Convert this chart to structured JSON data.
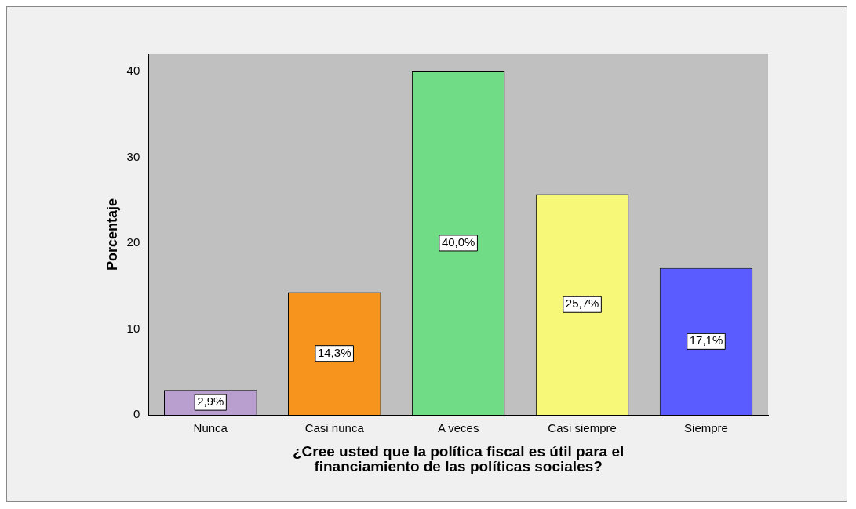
{
  "chart_data": {
    "type": "bar",
    "xlabel": "¿Cree usted que la política fiscal es útil para el\nfinanciamiento de las políticas sociales?",
    "ylabel": "Porcentaje",
    "categories": [
      "Nunca",
      "Casi nunca",
      "A veces",
      "Casi siempre",
      "Siempre"
    ],
    "values": [
      2.9,
      14.3,
      40.0,
      25.7,
      17.1
    ],
    "colors": [
      "#b89fd0",
      "#f7941d",
      "#70dc86",
      "#f8f878",
      "#5a5cff"
    ],
    "value_labels": [
      "2,9%",
      "14,3%",
      "40,0%",
      "25,7%",
      "17,1%"
    ],
    "ylim": [
      0,
      42
    ],
    "yticks": [
      0,
      10,
      20,
      30,
      40
    ],
    "grid": false,
    "legend": false
  }
}
